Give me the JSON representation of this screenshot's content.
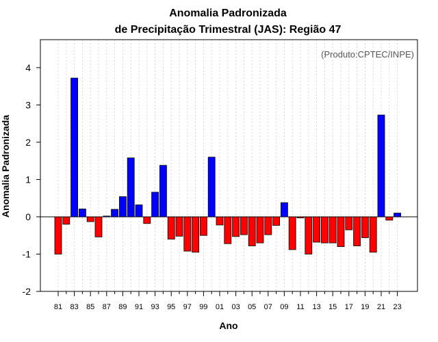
{
  "chart_data": {
    "type": "bar",
    "title": [
      "Anomalia Padronizada",
      "de Precipitação Trimestral (JAS): Região 47"
    ],
    "annotation": "(Produto:CPTEC/INPE)",
    "xlabel": "Ano",
    "ylabel": "Anomalia Padronizada",
    "ylim": [
      -2,
      4.75
    ],
    "yticks": [
      -2,
      -1,
      0,
      1,
      2,
      3,
      4
    ],
    "xtick_labels": [
      "81",
      "83",
      "85",
      "87",
      "89",
      "91",
      "93",
      "95",
      "97",
      "99",
      "01",
      "03",
      "05",
      "07",
      "09",
      "11",
      "13",
      "15",
      "17",
      "19",
      "21",
      "23"
    ],
    "colors": {
      "positive": "#0000ff",
      "negative": "#ff0000",
      "grid": "#cccccc"
    },
    "categories": [
      "1981",
      "1982",
      "1983",
      "1984",
      "1985",
      "1986",
      "1987",
      "1988",
      "1989",
      "1990",
      "1991",
      "1992",
      "1993",
      "1994",
      "1995",
      "1996",
      "1997",
      "1998",
      "1999",
      "2000",
      "2001",
      "2002",
      "2003",
      "2004",
      "2005",
      "2006",
      "2007",
      "2008",
      "2009",
      "2010",
      "2011",
      "2012",
      "2013",
      "2014",
      "2015",
      "2016",
      "2017",
      "2018",
      "2019",
      "2020",
      "2021",
      "2022",
      "2023"
    ],
    "values": [
      -1.0,
      -0.2,
      3.72,
      0.21,
      -0.13,
      -0.54,
      0.02,
      0.2,
      0.54,
      1.58,
      0.32,
      -0.18,
      0.66,
      1.38,
      -0.6,
      -0.52,
      -0.92,
      -0.95,
      -0.5,
      1.6,
      -0.22,
      -0.72,
      -0.53,
      -0.48,
      -0.78,
      -0.7,
      -0.48,
      -0.23,
      0.38,
      -0.88,
      -0.03,
      -1.0,
      -0.68,
      -0.7,
      -0.7,
      -0.8,
      -0.35,
      -0.78,
      -0.56,
      -0.95,
      2.73,
      -0.09,
      0.1
    ]
  }
}
